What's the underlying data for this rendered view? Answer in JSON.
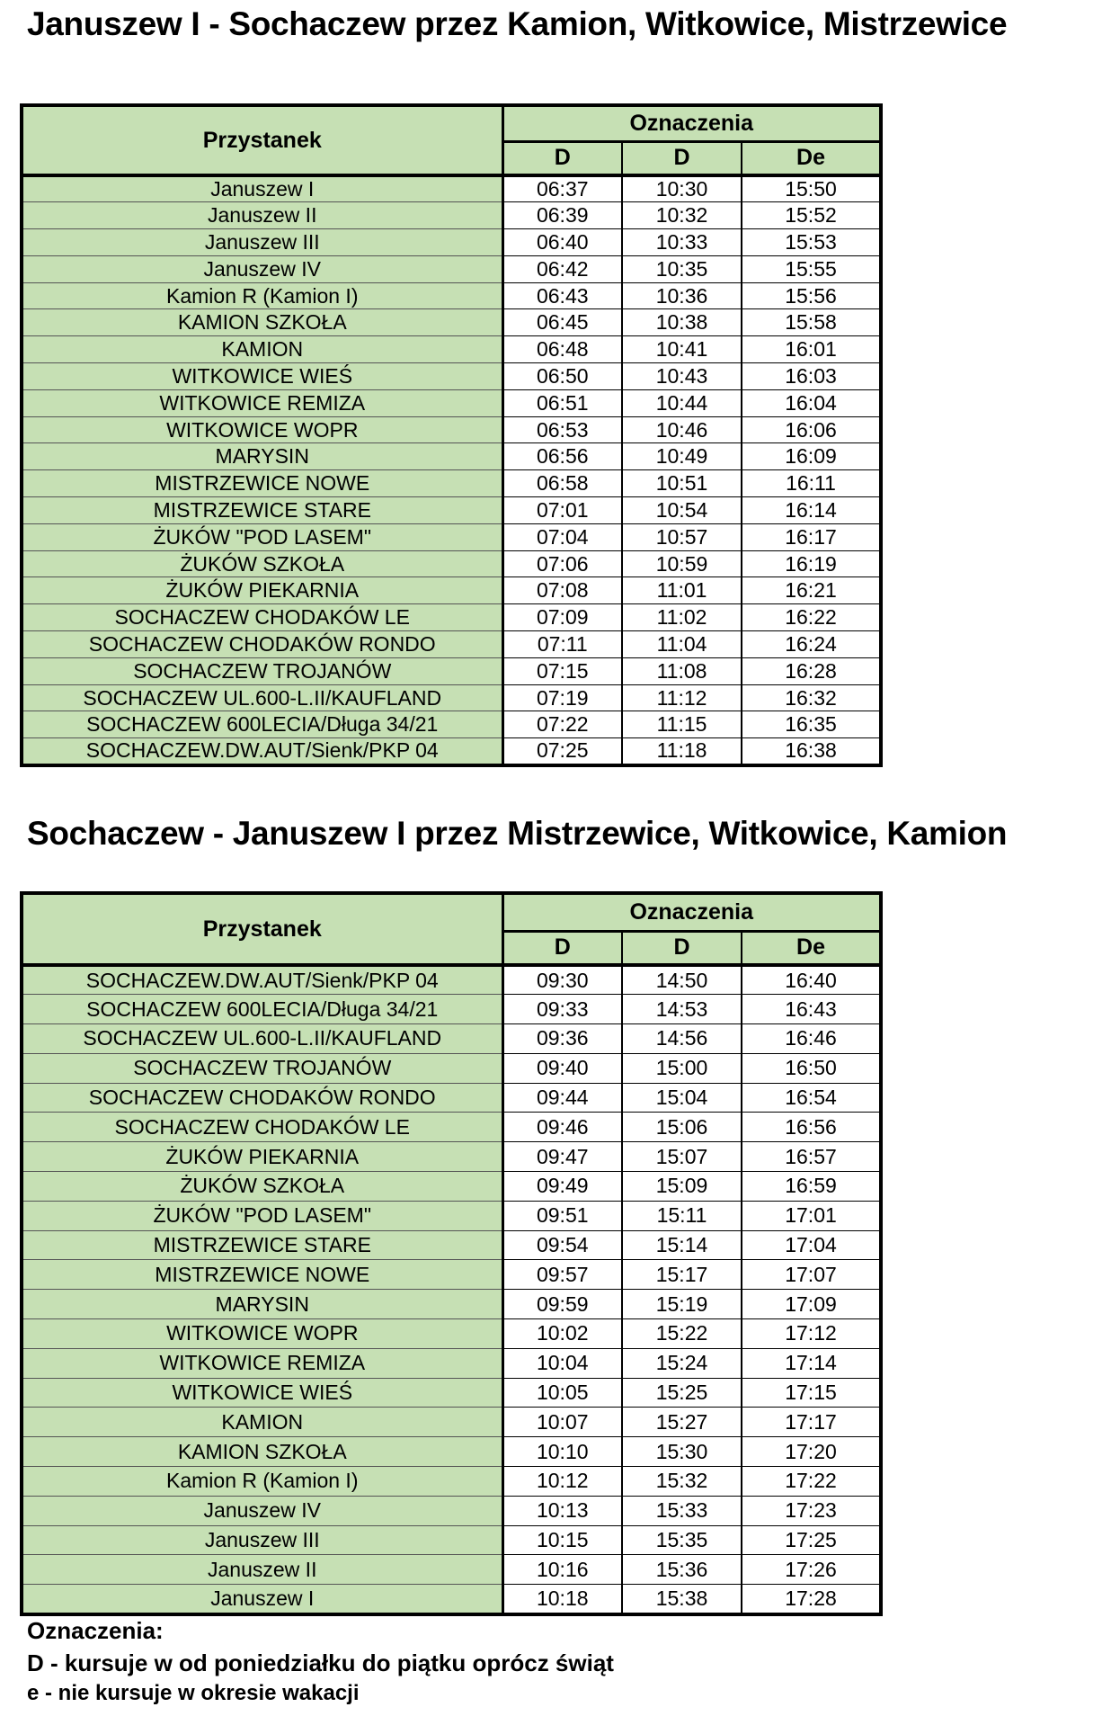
{
  "timetables": [
    {
      "title": "Januszew I - Sochaczew przez Kamion, Witkowice, Mistrzewice",
      "header_stop": "Przystanek",
      "header_group": "Oznaczenia",
      "columns": [
        "D",
        "D",
        "De"
      ],
      "rows": [
        {
          "stop": "Januszew I",
          "times": [
            "06:37",
            "10:30",
            "15:50"
          ]
        },
        {
          "stop": "Januszew II",
          "times": [
            "06:39",
            "10:32",
            "15:52"
          ]
        },
        {
          "stop": "Januszew III",
          "times": [
            "06:40",
            "10:33",
            "15:53"
          ]
        },
        {
          "stop": "Januszew IV",
          "times": [
            "06:42",
            "10:35",
            "15:55"
          ]
        },
        {
          "stop": "Kamion R (Kamion I)",
          "times": [
            "06:43",
            "10:36",
            "15:56"
          ]
        },
        {
          "stop": "KAMION SZKOŁA",
          "times": [
            "06:45",
            "10:38",
            "15:58"
          ]
        },
        {
          "stop": "KAMION",
          "times": [
            "06:48",
            "10:41",
            "16:01"
          ]
        },
        {
          "stop": "WITKOWICE WIEŚ",
          "times": [
            "06:50",
            "10:43",
            "16:03"
          ]
        },
        {
          "stop": "WITKOWICE REMIZA",
          "times": [
            "06:51",
            "10:44",
            "16:04"
          ]
        },
        {
          "stop": "WITKOWICE WOPR",
          "times": [
            "06:53",
            "10:46",
            "16:06"
          ]
        },
        {
          "stop": "MARYSIN",
          "times": [
            "06:56",
            "10:49",
            "16:09"
          ]
        },
        {
          "stop": "MISTRZEWICE NOWE",
          "times": [
            "06:58",
            "10:51",
            "16:11"
          ]
        },
        {
          "stop": "MISTRZEWICE STARE",
          "times": [
            "07:01",
            "10:54",
            "16:14"
          ]
        },
        {
          "stop": "ŻUKÓW \"POD LASEM\"",
          "times": [
            "07:04",
            "10:57",
            "16:17"
          ]
        },
        {
          "stop": "ŻUKÓW SZKOŁA",
          "times": [
            "07:06",
            "10:59",
            "16:19"
          ]
        },
        {
          "stop": "ŻUKÓW PIEKARNIA",
          "times": [
            "07:08",
            "11:01",
            "16:21"
          ]
        },
        {
          "stop": "SOCHACZEW CHODAKÓW LE",
          "times": [
            "07:09",
            "11:02",
            "16:22"
          ]
        },
        {
          "stop": "SOCHACZEW CHODAKÓW RONDO",
          "times": [
            "07:11",
            "11:04",
            "16:24"
          ]
        },
        {
          "stop": "SOCHACZEW TROJANÓW",
          "times": [
            "07:15",
            "11:08",
            "16:28"
          ]
        },
        {
          "stop": "SOCHACZEW UL.600-L.II/KAUFLAND",
          "times": [
            "07:19",
            "11:12",
            "16:32"
          ]
        },
        {
          "stop": "SOCHACZEW 600LECIA/Długa 34/21",
          "times": [
            "07:22",
            "11:15",
            "16:35"
          ]
        },
        {
          "stop": "SOCHACZEW.DW.AUT/Sienk/PKP 04",
          "times": [
            "07:25",
            "11:18",
            "16:38"
          ]
        }
      ]
    },
    {
      "title": "Sochaczew - Januszew I przez Mistrzewice, Witkowice, Kamion",
      "header_stop": "Przystanek",
      "header_group": "Oznaczenia",
      "columns": [
        "D",
        "D",
        "De"
      ],
      "rows": [
        {
          "stop": "SOCHACZEW.DW.AUT/Sienk/PKP 04",
          "times": [
            "09:30",
            "14:50",
            "16:40"
          ]
        },
        {
          "stop": "SOCHACZEW 600LECIA/Długa 34/21",
          "times": [
            "09:33",
            "14:53",
            "16:43"
          ]
        },
        {
          "stop": "SOCHACZEW UL.600-L.II/KAUFLAND",
          "times": [
            "09:36",
            "14:56",
            "16:46"
          ]
        },
        {
          "stop": "SOCHACZEW TROJANÓW",
          "times": [
            "09:40",
            "15:00",
            "16:50"
          ]
        },
        {
          "stop": "SOCHACZEW CHODAKÓW RONDO",
          "times": [
            "09:44",
            "15:04",
            "16:54"
          ]
        },
        {
          "stop": "SOCHACZEW CHODAKÓW LE",
          "times": [
            "09:46",
            "15:06",
            "16:56"
          ]
        },
        {
          "stop": "ŻUKÓW PIEKARNIA",
          "times": [
            "09:47",
            "15:07",
            "16:57"
          ]
        },
        {
          "stop": "ŻUKÓW SZKOŁA",
          "times": [
            "09:49",
            "15:09",
            "16:59"
          ]
        },
        {
          "stop": "ŻUKÓW \"POD LASEM\"",
          "times": [
            "09:51",
            "15:11",
            "17:01"
          ]
        },
        {
          "stop": "MISTRZEWICE STARE",
          "times": [
            "09:54",
            "15:14",
            "17:04"
          ]
        },
        {
          "stop": "MISTRZEWICE NOWE",
          "times": [
            "09:57",
            "15:17",
            "17:07"
          ]
        },
        {
          "stop": "MARYSIN",
          "times": [
            "09:59",
            "15:19",
            "17:09"
          ]
        },
        {
          "stop": "WITKOWICE WOPR",
          "times": [
            "10:02",
            "15:22",
            "17:12"
          ]
        },
        {
          "stop": "WITKOWICE REMIZA",
          "times": [
            "10:04",
            "15:24",
            "17:14"
          ]
        },
        {
          "stop": "WITKOWICE WIEŚ",
          "times": [
            "10:05",
            "15:25",
            "17:15"
          ]
        },
        {
          "stop": "KAMION",
          "times": [
            "10:07",
            "15:27",
            "17:17"
          ]
        },
        {
          "stop": "KAMION SZKOŁA",
          "times": [
            "10:10",
            "15:30",
            "17:20"
          ]
        },
        {
          "stop": "Kamion R (Kamion I)",
          "times": [
            "10:12",
            "15:32",
            "17:22"
          ]
        },
        {
          "stop": "Januszew IV",
          "times": [
            "10:13",
            "15:33",
            "17:23"
          ]
        },
        {
          "stop": "Januszew III",
          "times": [
            "10:15",
            "15:35",
            "17:25"
          ]
        },
        {
          "stop": "Januszew II",
          "times": [
            "10:16",
            "15:36",
            "17:26"
          ]
        },
        {
          "stop": "Januszew I",
          "times": [
            "10:18",
            "15:38",
            "17:28"
          ]
        }
      ]
    }
  ],
  "legend": {
    "title": "Oznaczenia:",
    "items": [
      "D - kursuje w  od poniedziałku do piątku oprócz  świąt",
      "e - nie kursuje w okresie wakacji"
    ]
  },
  "colors": {
    "stop_background": "#c6e0b4",
    "time_background": "#ffffff"
  }
}
